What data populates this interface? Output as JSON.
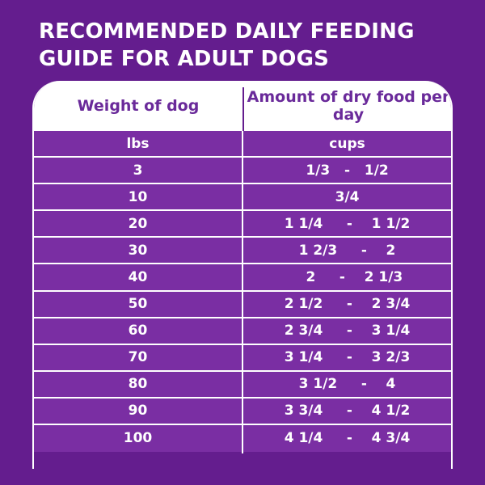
{
  "title": {
    "line1": "RECOMMENDED DAILY FEEDING",
    "line2": "GUIDE FOR ADULT DOGS"
  },
  "table": {
    "headers": [
      "Weight of dog",
      "Amount of dry food per day"
    ],
    "units": [
      "lbs",
      "cups"
    ],
    "rows": [
      {
        "weight": "3",
        "amount": "1/3   -   1/2"
      },
      {
        "weight": "10",
        "amount": "3/4"
      },
      {
        "weight": "20",
        "amount": "1 1/4     -    1 1/2"
      },
      {
        "weight": "30",
        "amount": "1 2/3     -    2"
      },
      {
        "weight": "40",
        "amount": "   2     -    2 1/3"
      },
      {
        "weight": "50",
        "amount": "2 1/2     -    2 3/4"
      },
      {
        "weight": "60",
        "amount": "2 3/4     -    3 1/4"
      },
      {
        "weight": "70",
        "amount": "3 1/4     -    3 2/3"
      },
      {
        "weight": "80",
        "amount": "3 1/2     -    4"
      },
      {
        "weight": "90",
        "amount": "3 3/4     -    4 1/2"
      },
      {
        "weight": "100",
        "amount": "4 1/4     -    4 3/4"
      }
    ]
  },
  "colors": {
    "background": "#641d8e",
    "row": "#7a2ea3",
    "header_text": "#6a2a9a",
    "lines": "#ffffff"
  }
}
